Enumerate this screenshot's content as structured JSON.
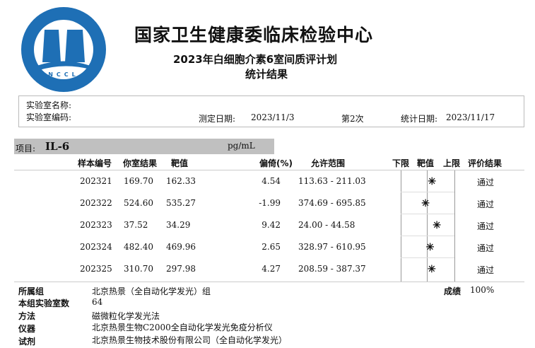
{
  "logo": {
    "cn_text": "国家卫生健康委临床检验中心",
    "en_text": "National Center for Clinical Laboratories",
    "abbr": "NCCL",
    "color": "#1e6fb5"
  },
  "header": {
    "org": "国家卫生健康委临床检验中心",
    "plan": "2023年白细胞介素6室间质评计划",
    "subtitle": "统计结果"
  },
  "info": {
    "lab_name_label": "实验室名称:",
    "lab_code_label": "实验室编码:",
    "test_date_label": "测定日期:",
    "test_date": "2023/11/3",
    "round": "第2次",
    "stat_date_label": "统计日期:",
    "stat_date": "2023/11/17"
  },
  "item": {
    "label": "项目:",
    "name": "IL-6",
    "unit": "pg/mL"
  },
  "table": {
    "headers": {
      "sample": "样本编号",
      "your_result": "你室结果",
      "target": "靶值",
      "bias": "偏倚(%)",
      "range": "允许范围",
      "lower": "下限",
      "target2": "靶值",
      "upper": "上限",
      "evaluation": "评价结果"
    },
    "rows": [
      {
        "sample": "202321",
        "result": "169.70",
        "target": "162.33",
        "bias": "4.54",
        "range": "113.63 - 211.03",
        "bias_value": 4.54,
        "evaluation": "通过"
      },
      {
        "sample": "202322",
        "result": "524.60",
        "target": "535.27",
        "bias": "-1.99",
        "range": "374.69 - 695.85",
        "bias_value": -1.99,
        "evaluation": "通过"
      },
      {
        "sample": "202323",
        "result": "37.52",
        "target": "34.29",
        "bias": "9.42",
        "range": "24.00 - 44.58",
        "bias_value": 9.42,
        "evaluation": "通过"
      },
      {
        "sample": "202324",
        "result": "482.40",
        "target": "469.96",
        "bias": "2.65",
        "range": "328.97 - 610.95",
        "bias_value": 2.65,
        "evaluation": "通过"
      },
      {
        "sample": "202325",
        "result": "310.70",
        "target": "297.98",
        "bias": "4.27",
        "range": "208.59 - 387.37",
        "bias_value": 4.27,
        "evaluation": "通过"
      }
    ]
  },
  "summary": {
    "group_label": "所属组",
    "group": "北京热景（全自动化学发光）组",
    "count_label": "本组实验室数",
    "count": "64",
    "method_label": "方法",
    "method": "磁微粒化学发光法",
    "instrument_label": "仪器",
    "instrument": "北京热景生物C2000全自动化学发光免疫分析仪",
    "reagent_label": "试剂",
    "reagent": "北京热景生物技术股份有限公司（全自动化学发光）",
    "score_label": "成绩",
    "score": "100%"
  }
}
